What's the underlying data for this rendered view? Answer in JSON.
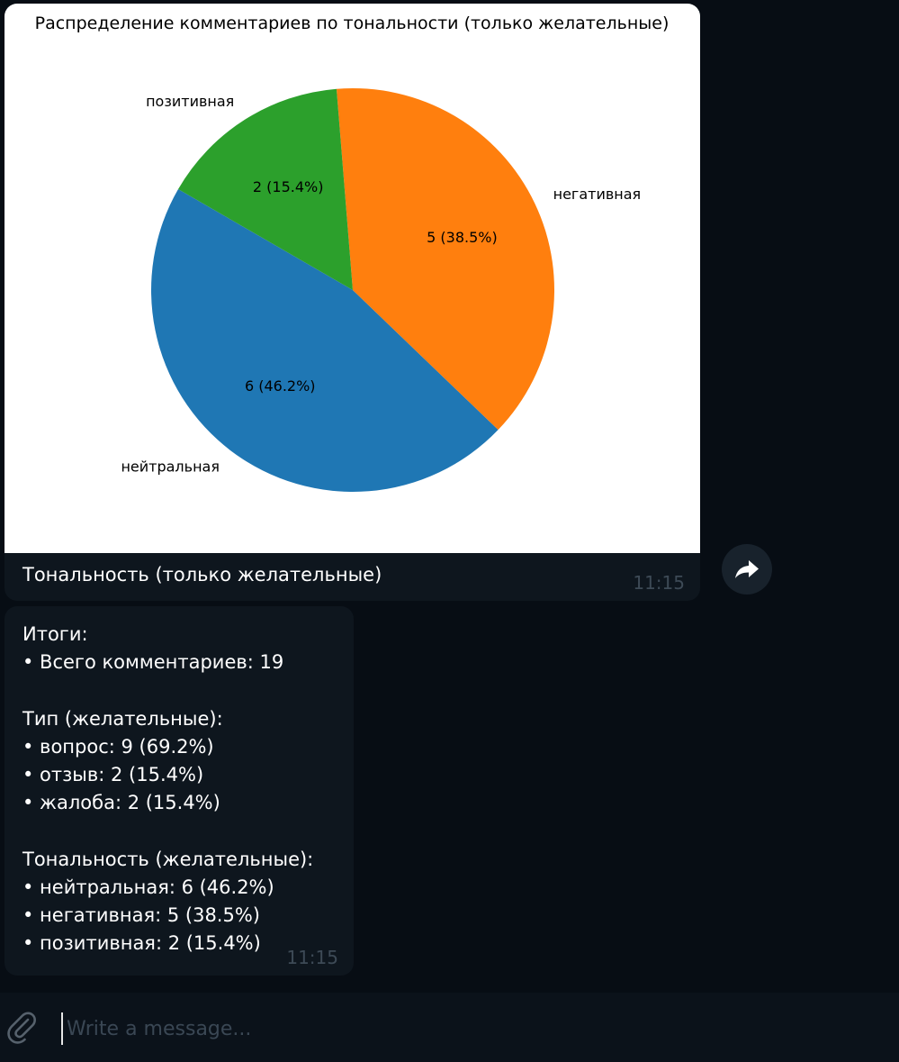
{
  "chart_message": {
    "caption": "Тональность (только желательные)",
    "time": "11:15"
  },
  "chart_data": {
    "type": "pie",
    "title": "Распределение комментариев по тональности (только желательные)",
    "start_angle_deg": 150,
    "slices": [
      {
        "label": "нейтральная",
        "value": 6,
        "display": "6 (46.2%)",
        "color": "#1f77b4"
      },
      {
        "label": "негативная",
        "value": 5,
        "display": "5 (38.5%)",
        "color": "#ff7f0e"
      },
      {
        "label": "позитивная",
        "value": 2,
        "display": "2 (15.4%)",
        "color": "#2ca02c"
      }
    ]
  },
  "summary_message": {
    "lines": [
      "Итоги:",
      "• Всего комментариев: 19",
      "",
      "Тип (желательные):",
      "• вопрос: 9 (69.2%)",
      "• отзыв: 2 (15.4%)",
      "• жалоба: 2 (15.4%)",
      "",
      "Тональность (желательные):",
      "• нейтральная: 6 (46.2%)",
      "• негативная: 5 (38.5%)",
      "• позитивная: 2 (15.4%)"
    ],
    "time": "11:15"
  },
  "composer": {
    "placeholder": "Write a message..."
  },
  "icons": {
    "forward": "forward-arrow-icon",
    "attach": "paperclip-icon"
  },
  "colors": {
    "background": "#070d14",
    "bubble": "#0e161e",
    "time_text": "#3d4a56"
  }
}
